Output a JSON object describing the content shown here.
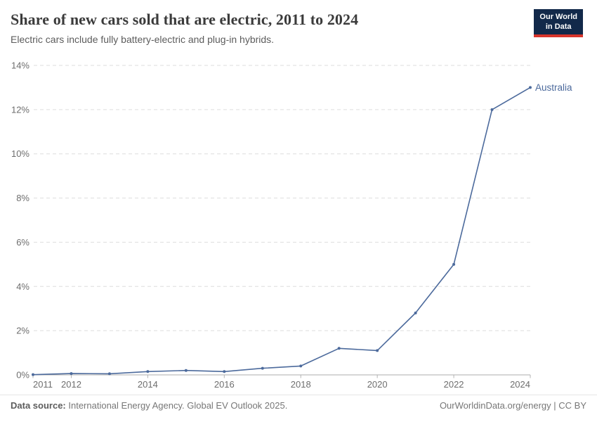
{
  "header": {
    "title": "Share of new cars sold that are electric, 2011 to 2024",
    "subtitle": "Electric cars include fully battery-electric and plug-in hybrids.",
    "logo": {
      "line1": "Our World",
      "line2": "in Data"
    }
  },
  "chart_data": {
    "type": "line",
    "title": "Share of new cars sold that are electric, 2011 to 2024",
    "x": [
      2011,
      2012,
      2013,
      2014,
      2015,
      2016,
      2017,
      2018,
      2019,
      2020,
      2021,
      2022,
      2023,
      2024
    ],
    "series": [
      {
        "name": "Australia",
        "color": "#4c6a9c",
        "values": [
          0.01,
          0.06,
          0.05,
          0.15,
          0.2,
          0.15,
          0.3,
          0.4,
          1.2,
          1.1,
          2.8,
          5.0,
          12.0,
          13.0
        ]
      }
    ],
    "xlim": [
      2011,
      2024
    ],
    "ylim": [
      0,
      14
    ],
    "x_tick_labels": [
      2011,
      2012,
      2014,
      2016,
      2018,
      2020,
      2022,
      2024
    ],
    "y_ticks": [
      0,
      2,
      4,
      6,
      8,
      10,
      12,
      14
    ],
    "y_tick_suffix": "%",
    "grid": "horizontal-dashed",
    "legend": "end-of-line-label"
  },
  "footer": {
    "source_label": "Data source:",
    "source_text": " International Energy Agency. Global EV Outlook 2025.",
    "credit": "OurWorldinData.org/energy | CC BY"
  },
  "colors": {
    "series_blue": "#4c6a9c",
    "grid": "#dedede",
    "axis": "#adadad",
    "tick": "#b3b3b3",
    "tick_text": "#6e6e6e",
    "logo_navy": "#12294a",
    "logo_red": "#d8352c"
  }
}
